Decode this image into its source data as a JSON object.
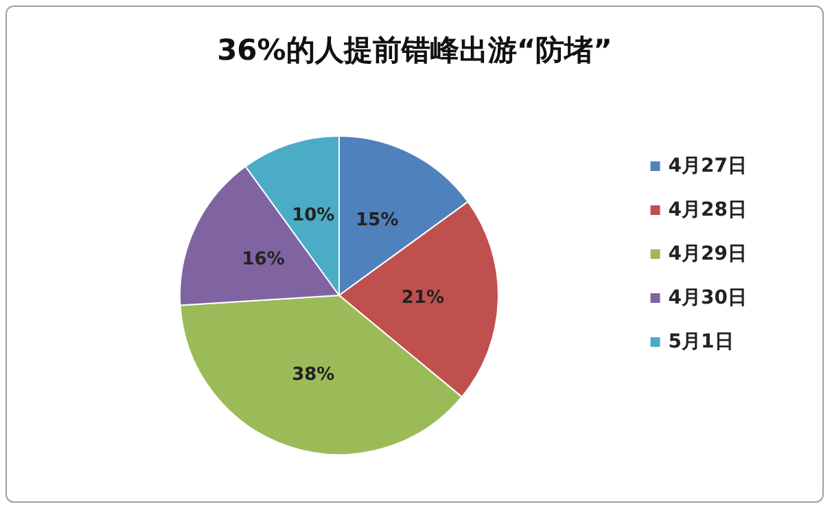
{
  "chart_data": {
    "type": "pie",
    "title": "36%的人提前错峰出游“防堵”",
    "categories": [
      "4月27日",
      "4月28日",
      "4月29日",
      "4月30日",
      "5月1日"
    ],
    "values": [
      15,
      21,
      38,
      16,
      10
    ],
    "colors": [
      "#4f81bd",
      "#c0504d",
      "#9bbb59",
      "#8064a2",
      "#4bacc6"
    ],
    "value_labels": [
      "15%",
      "21%",
      "38%",
      "16%",
      "10%"
    ],
    "legend": "right"
  }
}
